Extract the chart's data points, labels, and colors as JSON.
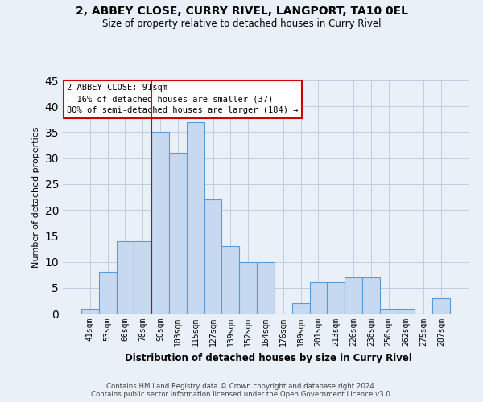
{
  "title": "2, ABBEY CLOSE, CURRY RIVEL, LANGPORT, TA10 0EL",
  "subtitle": "Size of property relative to detached houses in Curry Rivel",
  "xlabel": "Distribution of detached houses by size in Curry Rivel",
  "ylabel": "Number of detached properties",
  "categories": [
    "41sqm",
    "53sqm",
    "66sqm",
    "78sqm",
    "90sqm",
    "103sqm",
    "115sqm",
    "127sqm",
    "139sqm",
    "152sqm",
    "164sqm",
    "176sqm",
    "189sqm",
    "201sqm",
    "213sqm",
    "226sqm",
    "238sqm",
    "250sqm",
    "262sqm",
    "275sqm",
    "287sqm"
  ],
  "values": [
    1,
    8,
    14,
    14,
    35,
    31,
    37,
    22,
    13,
    10,
    10,
    0,
    2,
    6,
    6,
    7,
    7,
    1,
    1,
    0,
    3
  ],
  "bar_color": "#c6d9f0",
  "bar_edge_color": "#5b9bd5",
  "vline_color": "#cc0000",
  "annotation_text": "2 ABBEY CLOSE: 91sqm\n← 16% of detached houses are smaller (37)\n80% of semi-detached houses are larger (184) →",
  "annotation_box_color": "white",
  "annotation_box_edge_color": "#cc0000",
  "ylim": [
    0,
    45
  ],
  "yticks": [
    0,
    5,
    10,
    15,
    20,
    25,
    30,
    35,
    40,
    45
  ],
  "grid_color": "#c0cfe0",
  "background_color": "#eaf0f8",
  "footer_line1": "Contains HM Land Registry data © Crown copyright and database right 2024.",
  "footer_line2": "Contains public sector information licensed under the Open Government Licence v3.0."
}
